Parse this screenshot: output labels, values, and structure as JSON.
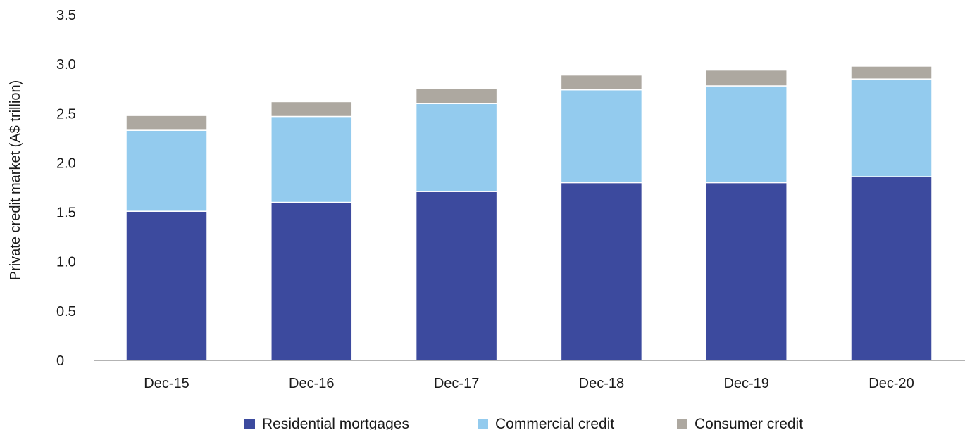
{
  "chart_data": {
    "type": "bar",
    "stacked": true,
    "title": "",
    "xlabel": "",
    "ylabel": "Private credit market (A$ trillion)",
    "ylim": [
      0,
      3.5
    ],
    "yticks": [
      0,
      0.5,
      1.0,
      1.5,
      2.0,
      2.5,
      3.0,
      3.5
    ],
    "ytick_labels": [
      "0",
      "0.5",
      "1.0",
      "1.5",
      "2.0",
      "2.5",
      "3.0",
      "3.5"
    ],
    "grid": false,
    "legend_position": "bottom",
    "categories": [
      "Dec-15",
      "Dec-16",
      "Dec-17",
      "Dec-18",
      "Dec-19",
      "Dec-20"
    ],
    "series": [
      {
        "name": "Residential mortgages",
        "color": "#3c4a9e",
        "values": [
          1.51,
          1.6,
          1.71,
          1.8,
          1.8,
          1.86
        ]
      },
      {
        "name": "Commercial credit",
        "color": "#93cbee",
        "values": [
          0.82,
          0.87,
          0.89,
          0.94,
          0.98,
          0.99
        ]
      },
      {
        "name": "Consumer credit",
        "color": "#ada8a0",
        "values": [
          0.15,
          0.15,
          0.15,
          0.15,
          0.16,
          0.13
        ]
      }
    ]
  }
}
